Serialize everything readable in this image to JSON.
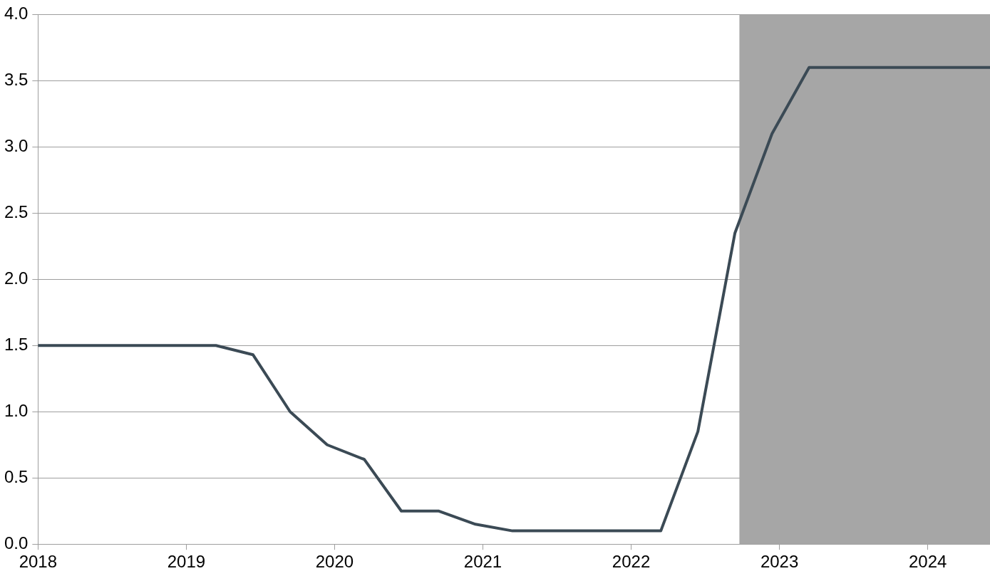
{
  "chart_data": {
    "type": "line",
    "x": [
      2018,
      2019.2,
      2019.45,
      2019.7,
      2019.95,
      2020.2,
      2020.45,
      2020.7,
      2020.95,
      2021.2,
      2022.2,
      2022.45,
      2022.7,
      2022.95,
      2023.2,
      2024.42
    ],
    "series": [
      {
        "color": "#3b4a55",
        "values": [
          1.5,
          1.5,
          1.43,
          1.0,
          0.75,
          0.64,
          0.25,
          0.25,
          0.15,
          0.1,
          0.1,
          0.85,
          2.35,
          3.1,
          3.6,
          3.6
        ]
      }
    ],
    "xlim": [
      2018,
      2024.42
    ],
    "xticks": [
      2018,
      2019,
      2020,
      2021,
      2022,
      2023,
      2024
    ],
    "ylim": [
      0,
      4
    ],
    "yticks": [
      {
        "value": 0,
        "label": "0.0"
      },
      {
        "value": 0.5,
        "label": "0.5"
      },
      {
        "value": 1,
        "label": "1.0"
      },
      {
        "value": 1.5,
        "label": "1.5"
      },
      {
        "value": 2,
        "label": "2.0"
      },
      {
        "value": 2.5,
        "label": "2.5"
      },
      {
        "value": 3,
        "label": "3.0"
      },
      {
        "value": 3.5,
        "label": "3.5"
      },
      {
        "value": 4,
        "label": "4.0"
      }
    ],
    "bands": [
      {
        "axis": "x",
        "from": 2022.73,
        "to": 2024.42,
        "color": "#a6a6a6"
      }
    ],
    "grid": "y",
    "legend": false,
    "marker": "none",
    "line_style": "solid"
  }
}
